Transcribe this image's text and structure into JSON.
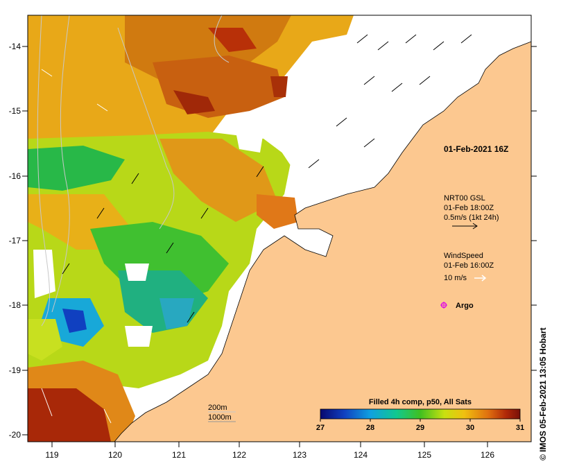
{
  "map": {
    "lon_ticks": [
      "119",
      "120",
      "121",
      "122",
      "123",
      "124",
      "125",
      "126"
    ],
    "lat_ticks": [
      "-14",
      "-15",
      "-16",
      "-17",
      "-18",
      "-19",
      "-20"
    ],
    "timestamp": "01-Feb-2021 16Z",
    "currents": {
      "line1": "NRT00 GSL",
      "line2": "01-Feb 18:00Z",
      "line3": "0.5m/s (1kt 24h)"
    },
    "wind": {
      "line1": "WindSpeed",
      "line2": "01-Feb 16:00Z",
      "line3": "10 m/s"
    },
    "argo_label": "Argo",
    "isobaths": {
      "line1": "200m",
      "line2": "1000m"
    },
    "colorbar": {
      "title": "Filled 4h comp, p50, All Sats",
      "ticks": [
        "27",
        "28",
        "29",
        "30",
        "31"
      ],
      "colors": [
        "#08086e",
        "#1040c0",
        "#10a0e0",
        "#10c890",
        "#40c020",
        "#c8e010",
        "#f0c010",
        "#e07010",
        "#b02808",
        "#781008"
      ]
    },
    "credit": "© IMOS 05-Feb-2021 13:05 Hobart",
    "colors": {
      "land": "#fcc890",
      "cloud": "#ffffff",
      "argo": "#e010e0"
    }
  }
}
